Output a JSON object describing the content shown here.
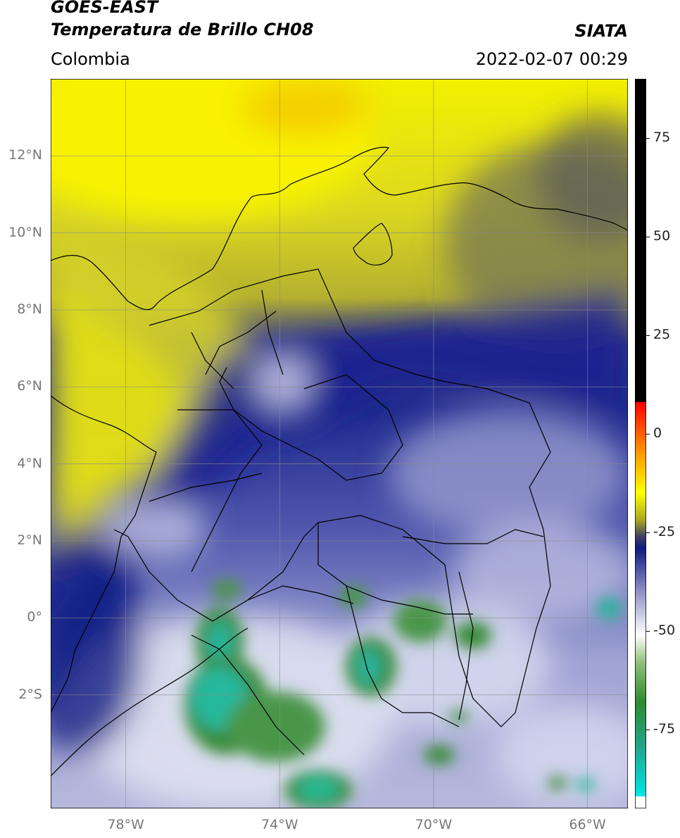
{
  "header": {
    "satellite": "GOES-EAST",
    "product": "Temperatura de Brillo CH08",
    "region": "Colombia",
    "institution": "SIATA",
    "datetime": "2022-02-07 00:29"
  },
  "map": {
    "lat_labels": [
      "12°N",
      "10°N",
      "8°N",
      "6°N",
      "4°N",
      "2°N",
      "0°",
      "2°S"
    ],
    "lat_values": [
      12,
      10,
      8,
      6,
      4,
      2,
      0,
      -2
    ],
    "lon_labels": [
      "78°W",
      "74°W",
      "70°W",
      "66°W"
    ],
    "lon_values": [
      -78,
      -74,
      -70,
      -66
    ],
    "lon_range": [
      -79.95,
      -64.95
    ],
    "lat_range": [
      -4.95,
      14.0
    ],
    "grid": true
  },
  "colorbar": {
    "tick_labels": [
      "75",
      "50",
      "25",
      "0",
      "-25",
      "-50",
      "-75"
    ],
    "tick_values": [
      75,
      50,
      25,
      0,
      -25,
      -50,
      -75
    ],
    "range": [
      -95,
      90
    ],
    "stops": [
      {
        "v": -95,
        "c": "#ffffff"
      },
      {
        "v": -92,
        "c": "#ffffff"
      },
      {
        "v": -91.9,
        "c": "#00e5e5"
      },
      {
        "v": -80,
        "c": "#20a890"
      },
      {
        "v": -68,
        "c": "#2f8a2f"
      },
      {
        "v": -58,
        "c": "#8fc07a"
      },
      {
        "v": -51,
        "c": "#ffffff"
      },
      {
        "v": -40,
        "c": "#9090c8"
      },
      {
        "v": -29,
        "c": "#101a80"
      },
      {
        "v": -26,
        "c": "#404060"
      },
      {
        "v": -22,
        "c": "#a6a622"
      },
      {
        "v": -15,
        "c": "#ffff00"
      },
      {
        "v": -5,
        "c": "#ff9900"
      },
      {
        "v": 8,
        "c": "#ff0000"
      },
      {
        "v": 8.1,
        "c": "#000000"
      },
      {
        "v": 90,
        "c": "#000000"
      }
    ]
  }
}
